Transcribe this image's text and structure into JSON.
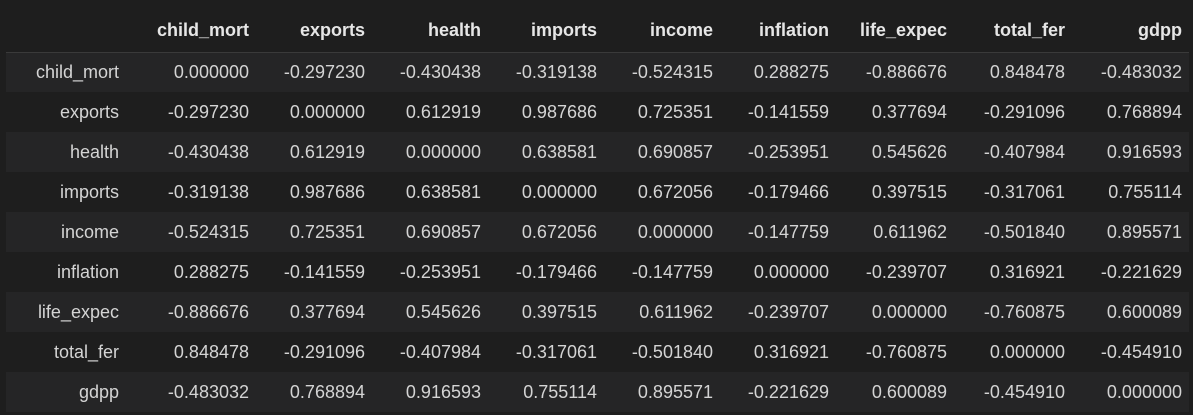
{
  "dataframe": {
    "index_header": "",
    "columns": [
      "child_mort",
      "exports",
      "health",
      "imports",
      "income",
      "inflation",
      "life_expec",
      "total_fer",
      "gdpp"
    ],
    "rows": [
      {
        "label": "child_mort",
        "values": [
          "0.000000",
          "-0.297230",
          "-0.430438",
          "-0.319138",
          "-0.524315",
          "0.288275",
          "-0.886676",
          "0.848478",
          "-0.483032"
        ]
      },
      {
        "label": "exports",
        "values": [
          "-0.297230",
          "0.000000",
          "0.612919",
          "0.987686",
          "0.725351",
          "-0.141559",
          "0.377694",
          "-0.291096",
          "0.768894"
        ]
      },
      {
        "label": "health",
        "values": [
          "-0.430438",
          "0.612919",
          "0.000000",
          "0.638581",
          "0.690857",
          "-0.253951",
          "0.545626",
          "-0.407984",
          "0.916593"
        ]
      },
      {
        "label": "imports",
        "values": [
          "-0.319138",
          "0.987686",
          "0.638581",
          "0.000000",
          "0.672056",
          "-0.179466",
          "0.397515",
          "-0.317061",
          "0.755114"
        ]
      },
      {
        "label": "income",
        "values": [
          "-0.524315",
          "0.725351",
          "0.690857",
          "0.672056",
          "0.000000",
          "-0.147759",
          "0.611962",
          "-0.501840",
          "0.895571"
        ]
      },
      {
        "label": "inflation",
        "values": [
          "0.288275",
          "-0.141559",
          "-0.253951",
          "-0.179466",
          "-0.147759",
          "0.000000",
          "-0.239707",
          "0.316921",
          "-0.221629"
        ]
      },
      {
        "label": "life_expec",
        "values": [
          "-0.886676",
          "0.377694",
          "0.545626",
          "0.397515",
          "0.611962",
          "-0.239707",
          "0.000000",
          "-0.760875",
          "0.600089"
        ]
      },
      {
        "label": "total_fer",
        "values": [
          "0.848478",
          "-0.291096",
          "-0.407984",
          "-0.317061",
          "-0.501840",
          "0.316921",
          "-0.760875",
          "0.000000",
          "-0.454910"
        ]
      },
      {
        "label": "gdpp",
        "values": [
          "-0.483032",
          "0.768894",
          "0.916593",
          "0.755114",
          "0.895571",
          "-0.221629",
          "0.600089",
          "-0.454910",
          "0.000000"
        ]
      }
    ]
  }
}
